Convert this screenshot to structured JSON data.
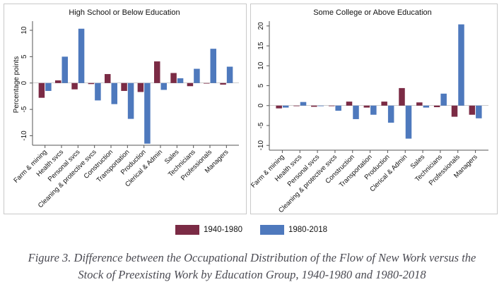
{
  "colors": {
    "series_1940": "#7b2b45",
    "series_1980": "#4e79bd",
    "axis": "#555555",
    "panel_border": "#c9c9c9"
  },
  "legend": {
    "items": [
      "1940-1980",
      "1980-2018"
    ]
  },
  "caption": {
    "line1": "Figure 3. Difference between the Occupational Distribution of the Flow of New Work versus the",
    "line2": "Stock of Preexisting Work by Education Group, 1940-1980 and 1980-2018"
  },
  "chart_data": [
    {
      "type": "bar",
      "title": "High School or Below Education",
      "ylabel": "Percentage points",
      "xlabel": "",
      "ylim": [
        -11.8,
        11.2
      ],
      "yticks": [
        -10,
        -5,
        0,
        5,
        10
      ],
      "categories": [
        "Farm & mining",
        "Health svcs",
        "Personal svcs",
        "Cleaning & protective svcs",
        "Construction",
        "Transportation",
        "Production",
        "Clerical & Admin",
        "Sales",
        "Technicians",
        "Professionals",
        "Managers"
      ],
      "series": [
        {
          "name": "1940-1980",
          "values": [
            -2.8,
            0.5,
            -1.2,
            -0.2,
            1.7,
            -1.5,
            -1.7,
            4.1,
            1.9,
            -0.6,
            -0.1,
            -0.3
          ]
        },
        {
          "name": "1980-2018",
          "values": [
            -1.5,
            5.0,
            10.3,
            -3.3,
            -4.0,
            -6.8,
            -11.5,
            -1.3,
            0.9,
            2.7,
            6.5,
            3.1
          ]
        }
      ]
    },
    {
      "type": "bar",
      "title": "Some College or Above Education",
      "ylabel": "",
      "xlabel": "",
      "ylim": [
        -11.2,
        20.5
      ],
      "yticks": [
        -10,
        -5,
        0,
        5,
        10,
        15,
        20
      ],
      "categories": [
        "Farm & mining",
        "Health svcs",
        "Personal svcs",
        "Cleaning & protective svcs",
        "Construction",
        "Transportation",
        "Production",
        "Clerical & Admin",
        "Sales",
        "Technicians",
        "Professionals",
        "Managers"
      ],
      "series": [
        {
          "name": "1940-1980",
          "values": [
            -0.7,
            -0.1,
            -0.3,
            -0.1,
            1.0,
            -0.5,
            1.0,
            4.4,
            0.8,
            -0.4,
            -2.8,
            -2.3
          ]
        },
        {
          "name": "1980-2018",
          "values": [
            -0.5,
            0.9,
            0.0,
            -1.3,
            -3.4,
            -2.3,
            -4.3,
            -8.3,
            -0.5,
            3.0,
            20.4,
            -3.2
          ]
        }
      ]
    }
  ]
}
